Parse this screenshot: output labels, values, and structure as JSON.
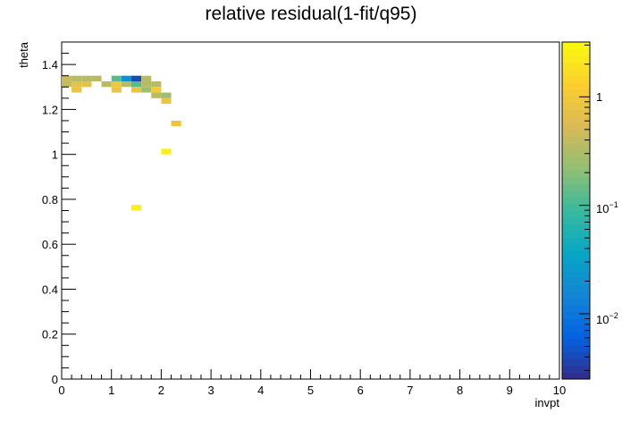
{
  "chart_data": {
    "type": "heatmap",
    "title": "relative residual(1-fit/q95)",
    "xlabel": "invpt",
    "ylabel": "theta",
    "xlim": [
      0,
      10
    ],
    "ylim": [
      0,
      1.5
    ],
    "x_ticks": [
      "0",
      "1",
      "2",
      "3",
      "4",
      "5",
      "6",
      "7",
      "8",
      "9",
      "10"
    ],
    "y_ticks": [
      "0",
      "0.2",
      "0.4",
      "0.6",
      "0.8",
      "1",
      "1.2",
      "1.4"
    ],
    "color_scale": "log",
    "color_range": [
      0.0025,
      3.2
    ],
    "colorbar_ticks": [
      "10^-2",
      "10^-1",
      "1"
    ],
    "grid": false,
    "legend": "none",
    "cells": [
      {
        "x0": 0.0,
        "x1": 0.2,
        "y0": 1.325,
        "y1": 1.35,
        "value": 0.45
      },
      {
        "x0": 0.2,
        "x1": 0.4,
        "y0": 1.325,
        "y1": 1.35,
        "value": 0.35
      },
      {
        "x0": 0.4,
        "x1": 0.6,
        "y0": 1.325,
        "y1": 1.35,
        "value": 0.35
      },
      {
        "x0": 0.6,
        "x1": 0.8,
        "y0": 1.325,
        "y1": 1.35,
        "value": 0.35
      },
      {
        "x0": 1.0,
        "x1": 1.2,
        "y0": 1.325,
        "y1": 1.35,
        "value": 0.12
      },
      {
        "x0": 1.2,
        "x1": 1.4,
        "y0": 1.325,
        "y1": 1.35,
        "value": 0.02
      },
      {
        "x0": 1.4,
        "x1": 1.6,
        "y0": 1.325,
        "y1": 1.35,
        "value": 0.004
      },
      {
        "x0": 1.6,
        "x1": 1.8,
        "y0": 1.325,
        "y1": 1.35,
        "value": 0.35
      },
      {
        "x0": 0.0,
        "x1": 0.2,
        "y0": 1.3,
        "y1": 1.325,
        "value": 0.4
      },
      {
        "x0": 0.2,
        "x1": 0.4,
        "y0": 1.3,
        "y1": 1.325,
        "value": 0.75
      },
      {
        "x0": 0.4,
        "x1": 0.6,
        "y0": 1.3,
        "y1": 1.325,
        "value": 0.75
      },
      {
        "x0": 0.8,
        "x1": 1.0,
        "y0": 1.3,
        "y1": 1.325,
        "value": 0.35
      },
      {
        "x0": 1.0,
        "x1": 1.2,
        "y0": 1.3,
        "y1": 1.325,
        "value": 1.0
      },
      {
        "x0": 1.2,
        "x1": 1.4,
        "y0": 1.3,
        "y1": 1.325,
        "value": 0.35
      },
      {
        "x0": 1.4,
        "x1": 1.6,
        "y0": 1.3,
        "y1": 1.325,
        "value": 0.12
      },
      {
        "x0": 1.6,
        "x1": 1.8,
        "y0": 1.3,
        "y1": 1.325,
        "value": 0.35
      },
      {
        "x0": 1.8,
        "x1": 2.0,
        "y0": 1.3,
        "y1": 1.325,
        "value": 0.35
      },
      {
        "x0": 0.2,
        "x1": 0.4,
        "y0": 1.275,
        "y1": 1.3,
        "value": 0.85
      },
      {
        "x0": 1.0,
        "x1": 1.2,
        "y0": 1.275,
        "y1": 1.3,
        "value": 0.85
      },
      {
        "x0": 1.4,
        "x1": 1.6,
        "y0": 1.275,
        "y1": 1.3,
        "value": 0.85
      },
      {
        "x0": 1.6,
        "x1": 1.8,
        "y0": 1.275,
        "y1": 1.3,
        "value": 0.25
      },
      {
        "x0": 1.8,
        "x1": 2.0,
        "y0": 1.275,
        "y1": 1.3,
        "value": 1.1
      },
      {
        "x0": 1.8,
        "x1": 2.0,
        "y0": 1.25,
        "y1": 1.275,
        "value": 0.35
      },
      {
        "x0": 2.0,
        "x1": 2.2,
        "y0": 1.25,
        "y1": 1.275,
        "value": 0.25
      },
      {
        "x0": 2.0,
        "x1": 2.2,
        "y0": 1.225,
        "y1": 1.25,
        "value": 0.85
      },
      {
        "x0": 2.2,
        "x1": 2.4,
        "y0": 1.125,
        "y1": 1.15,
        "value": 0.85
      },
      {
        "x0": 2.0,
        "x1": 2.2,
        "y0": 1.0,
        "y1": 1.025,
        "value": 2.5
      },
      {
        "x0": 1.4,
        "x1": 1.6,
        "y0": 0.75,
        "y1": 0.775,
        "value": 2.5
      }
    ]
  },
  "colors": {
    "palette": [
      "#352a87",
      "#0363e1",
      "#1485d4",
      "#06a7c6",
      "#38b99e",
      "#92bf73",
      "#d9ba56",
      "#fcce2e",
      "#f9fb0e"
    ]
  }
}
